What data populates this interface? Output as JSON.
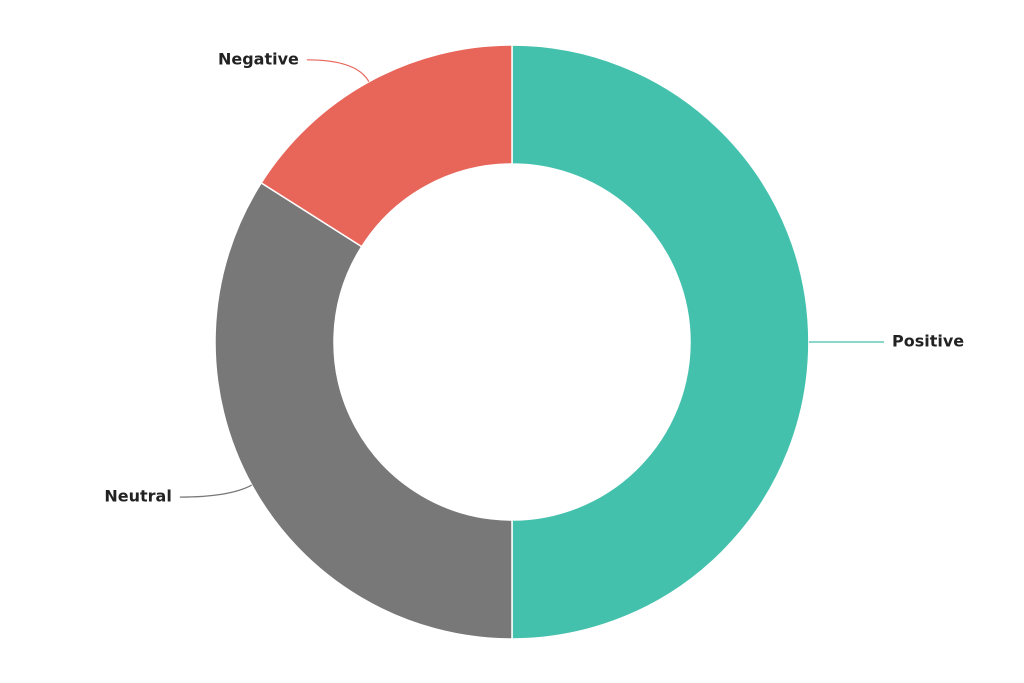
{
  "chart_data": {
    "type": "donut",
    "categories": [
      "Positive",
      "Neutral",
      "Negative"
    ],
    "values": [
      50,
      34,
      16
    ],
    "colors": [
      "#44c1ad",
      "#787878",
      "#e8655a"
    ]
  }
}
